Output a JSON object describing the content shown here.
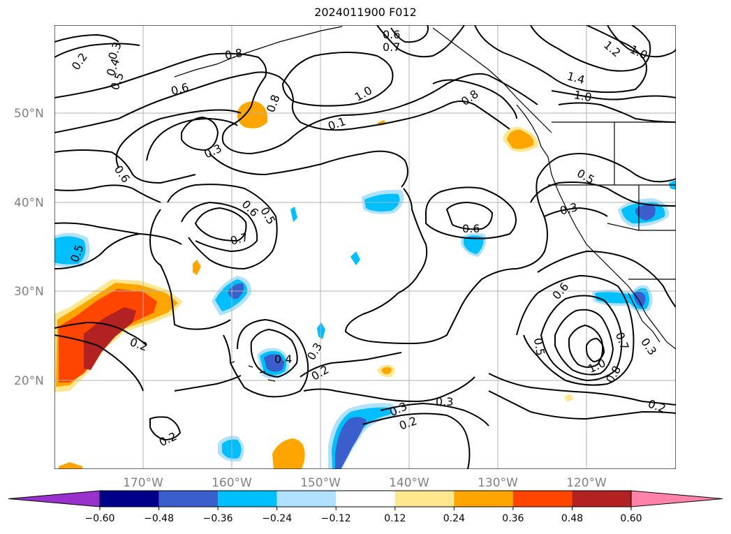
{
  "title": "2024011900 F012",
  "map": {
    "lat_labels": [
      "50°N",
      "40°N",
      "30°N",
      "20°N"
    ],
    "lon_labels": [
      "170°W",
      "160°W",
      "150°W",
      "140°W",
      "130°W",
      "120°W"
    ],
    "grid": true,
    "contour_labels": [
      {
        "text": "0.2"
      },
      {
        "text": "0.3"
      },
      {
        "text": "0.4"
      },
      {
        "text": "0.5"
      },
      {
        "text": "0.6"
      },
      {
        "text": "0.7"
      },
      {
        "text": "0.8"
      },
      {
        "text": "1.0"
      },
      {
        "text": "1.2"
      },
      {
        "text": "1.4"
      },
      {
        "text": "0.6"
      },
      {
        "text": "0.7"
      },
      {
        "text": "0.8"
      },
      {
        "text": "0.6"
      },
      {
        "text": "0.3"
      },
      {
        "text": "0.6"
      },
      {
        "text": "0.8"
      },
      {
        "text": "1.0"
      },
      {
        "text": "0.8"
      },
      {
        "text": "1.0"
      },
      {
        "text": "0.1"
      },
      {
        "text": "0.5"
      },
      {
        "text": "0.3"
      },
      {
        "text": "0.6"
      },
      {
        "text": "0.5"
      },
      {
        "text": "0.7"
      },
      {
        "text": "0.6"
      },
      {
        "text": "0.5"
      },
      {
        "text": "0.2"
      },
      {
        "text": "0.4"
      },
      {
        "text": "0.3"
      },
      {
        "text": "0.2"
      },
      {
        "text": "0.3"
      },
      {
        "text": "0.2"
      },
      {
        "text": "0.3"
      },
      {
        "text": "0.2"
      },
      {
        "text": "0.6"
      },
      {
        "text": "0.5"
      },
      {
        "text": "1.0"
      },
      {
        "text": "0.8"
      },
      {
        "text": "0.7"
      },
      {
        "text": "0.3"
      },
      {
        "text": "0.2"
      },
      {
        "text": "0.2"
      }
    ]
  },
  "colorbar": {
    "ticks": [
      "−0.60",
      "−0.48",
      "−0.36",
      "−0.24",
      "−0.12",
      "0.12",
      "0.24",
      "0.36",
      "0.48",
      "0.60"
    ],
    "colors": [
      "#9932cc",
      "#00008b",
      "#3a5fcd",
      "#00bfff",
      "#b0e2ff",
      "#ffffff",
      "#ffe78f",
      "#ffa500",
      "#ff4500",
      "#b22222",
      "#ff82ab"
    ]
  }
}
